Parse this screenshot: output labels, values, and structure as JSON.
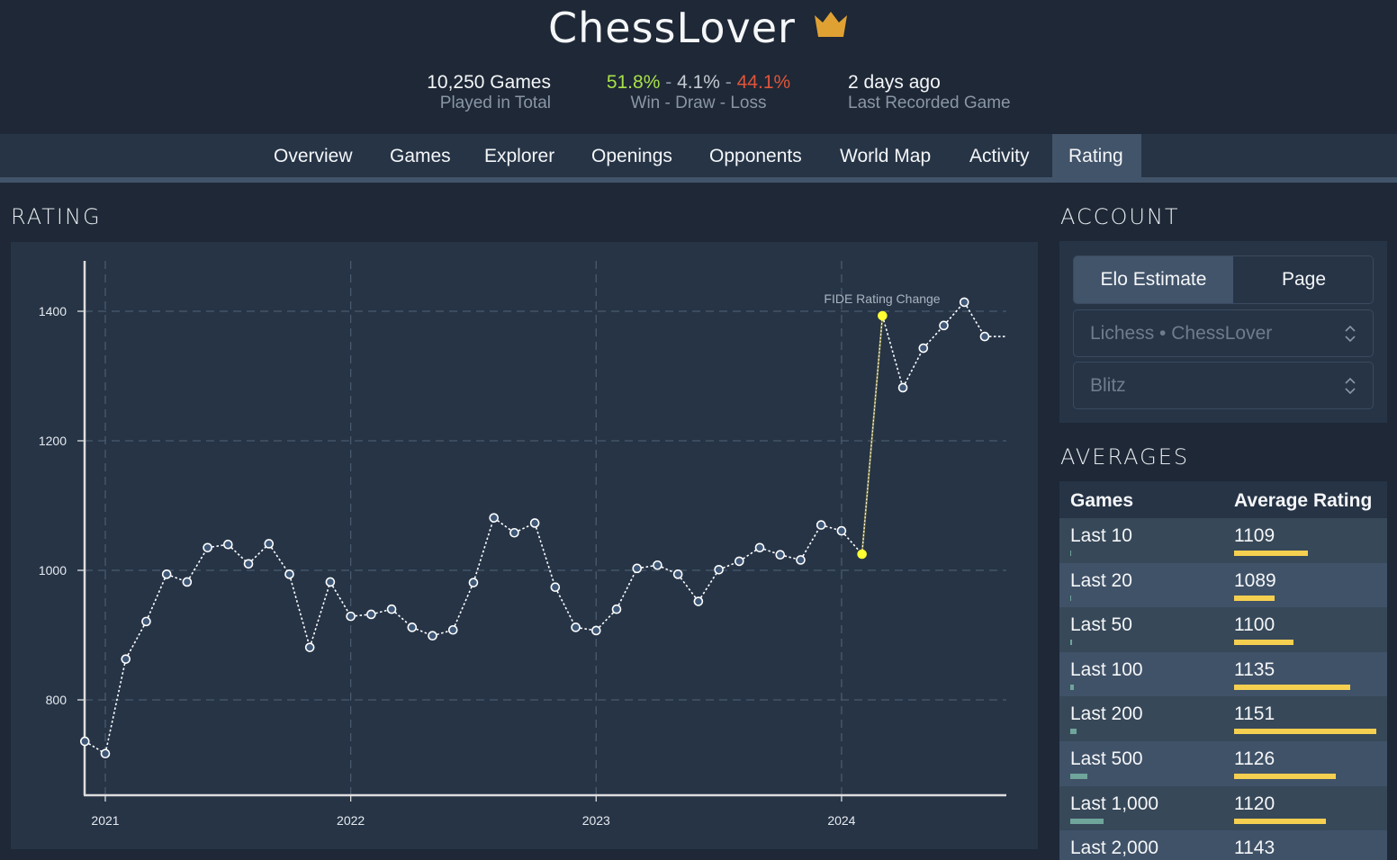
{
  "header": {
    "title": "ChessLover",
    "crown_icon": "crown-icon",
    "crown_color": "#e0a133",
    "stats": {
      "games_value": "10,250 Games",
      "games_label": "Played in Total",
      "win_pct": "51.8%",
      "draw_pct": "4.1%",
      "loss_pct": "44.1%",
      "separator": "-",
      "wdl_label": "Win - Draw - Loss",
      "last_value": "2 days ago",
      "last_label": "Last Recorded Game"
    },
    "colors": {
      "win": "#a8e04a",
      "draw": "#c3c9d2",
      "loss": "#e0543a"
    }
  },
  "nav": {
    "tabs": [
      {
        "label": "Overview",
        "active": false
      },
      {
        "label": "Games",
        "active": false
      },
      {
        "label": "Explorer",
        "active": false
      },
      {
        "label": "Openings",
        "active": false
      },
      {
        "label": "Opponents",
        "active": false
      },
      {
        "label": "World Map",
        "active": false
      },
      {
        "label": "Activity",
        "active": false
      },
      {
        "label": "Rating",
        "active": true
      }
    ]
  },
  "rating_section": {
    "title": "RATING"
  },
  "account_section": {
    "title": "ACCOUNT",
    "toggle": {
      "option_1": "Elo Estimate",
      "option_2": "Page",
      "selected": "Elo Estimate"
    },
    "account_select": {
      "value": "Lichess • ChessLover"
    },
    "mode_select": {
      "value": "Blitz"
    },
    "select_icon": "chevron-up-down-icon"
  },
  "averages_section": {
    "title": "AVERAGES",
    "columns": [
      "Games",
      "Average Rating"
    ],
    "rows": [
      {
        "games": "Last 10",
        "rating": "1109",
        "games_bar": 1,
        "rating_bar": 82
      },
      {
        "games": "Last 20",
        "rating": "1089",
        "games_bar": 1,
        "rating_bar": 45
      },
      {
        "games": "Last 50",
        "rating": "1100",
        "games_bar": 2,
        "rating_bar": 66
      },
      {
        "games": "Last 100",
        "rating": "1135",
        "games_bar": 4,
        "rating_bar": 129
      },
      {
        "games": "Last 200",
        "rating": "1151",
        "games_bar": 7,
        "rating_bar": 158
      },
      {
        "games": "Last 500",
        "rating": "1126",
        "games_bar": 19,
        "rating_bar": 113
      },
      {
        "games": "Last 1,000",
        "rating": "1120",
        "games_bar": 37,
        "rating_bar": 102
      },
      {
        "games": "Last 2,000",
        "rating": "1143",
        "games_bar": 0,
        "rating_bar": 0
      }
    ],
    "colors": {
      "games_bar": "#6fa59a",
      "rating_bar": "#f5cf50"
    }
  },
  "chart_data": {
    "type": "line",
    "title": "RATING",
    "xlabel": "",
    "ylabel": "",
    "x_ticks": [
      "2021",
      "2022",
      "2023",
      "2024"
    ],
    "y_ticks": [
      800,
      1000,
      1200,
      1400
    ],
    "ylim": [
      650,
      1480
    ],
    "grid": true,
    "annotation": {
      "text": "FIDE Rating Change",
      "at": "2024-03"
    },
    "series": [
      {
        "name": "Rating",
        "x": [
          "2020-12",
          "2021-01",
          "2021-02",
          "2021-03",
          "2021-04",
          "2021-05",
          "2021-06",
          "2021-07",
          "2021-08",
          "2021-09",
          "2021-10",
          "2021-11",
          "2021-12",
          "2022-01",
          "2022-02",
          "2022-03",
          "2022-04",
          "2022-05",
          "2022-06",
          "2022-07",
          "2022-08",
          "2022-09",
          "2022-10",
          "2022-11",
          "2022-12",
          "2023-01",
          "2023-02",
          "2023-03",
          "2023-04",
          "2023-05",
          "2023-06",
          "2023-07",
          "2023-08",
          "2023-09",
          "2023-10",
          "2023-11",
          "2023-12",
          "2024-01",
          "2024-02",
          "2024-03",
          "2024-04",
          "2024-05",
          "2024-06",
          "2024-07",
          "2024-08"
        ],
        "values": [
          736,
          717,
          863,
          921,
          994,
          982,
          1035,
          1040,
          1010,
          1041,
          994,
          881,
          982,
          929,
          932,
          940,
          912,
          899,
          908,
          981,
          1081,
          1058,
          1073,
          974,
          912,
          907,
          940,
          1003,
          1008,
          994,
          952,
          1001,
          1014,
          1035,
          1024,
          1016,
          1070,
          1061,
          1025,
          1393,
          1282,
          1343,
          1378,
          1414,
          1361
        ],
        "highlighted": [
          "2024-02",
          "2024-03"
        ],
        "trailing_value": 1361
      }
    ],
    "colors": {
      "line": "#ffffff",
      "marker_fill": "#3f5877",
      "highlight": "#ffff33",
      "grid": "#4a5a6e",
      "axis": "#dddddd"
    }
  }
}
